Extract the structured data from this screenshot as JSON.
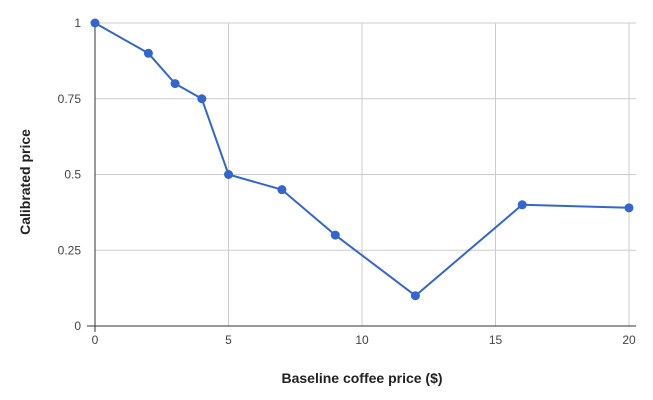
{
  "chart_data": {
    "type": "line",
    "title": "",
    "xlabel": "Baseline coffee price ($)",
    "ylabel": "Calibrated price",
    "xlim": [
      0,
      20
    ],
    "ylim": [
      0,
      1
    ],
    "x_ticks": [
      0,
      5,
      10,
      15,
      20
    ],
    "y_ticks": [
      0,
      0.25,
      0.5,
      0.75,
      1
    ],
    "grid": true,
    "legend": "none",
    "series": [
      {
        "color": "#3366CC",
        "markers": true,
        "points": [
          {
            "x": 0,
            "y": 1
          },
          {
            "x": 2,
            "y": 0.9
          },
          {
            "x": 3,
            "y": 0.8
          },
          {
            "x": 4,
            "y": 0.75
          },
          {
            "x": 5,
            "y": 0.5
          },
          {
            "x": 7,
            "y": 0.45
          },
          {
            "x": 9,
            "y": 0.3
          },
          {
            "x": 12,
            "y": 0.1
          },
          {
            "x": 16,
            "y": 0.4
          },
          {
            "x": 20,
            "y": 0.39
          }
        ]
      }
    ]
  }
}
